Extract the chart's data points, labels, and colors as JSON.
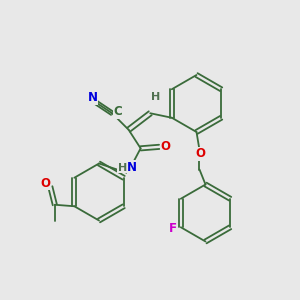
{
  "bg_color": "#e8e8e8",
  "colors": {
    "bond": "#3a6b3a",
    "N": "#0000dd",
    "O": "#dd0000",
    "F": "#cc00cc",
    "H": "#507050",
    "C": "#3a6b3a"
  },
  "figsize": [
    3.0,
    3.0
  ],
  "dpi": 100
}
